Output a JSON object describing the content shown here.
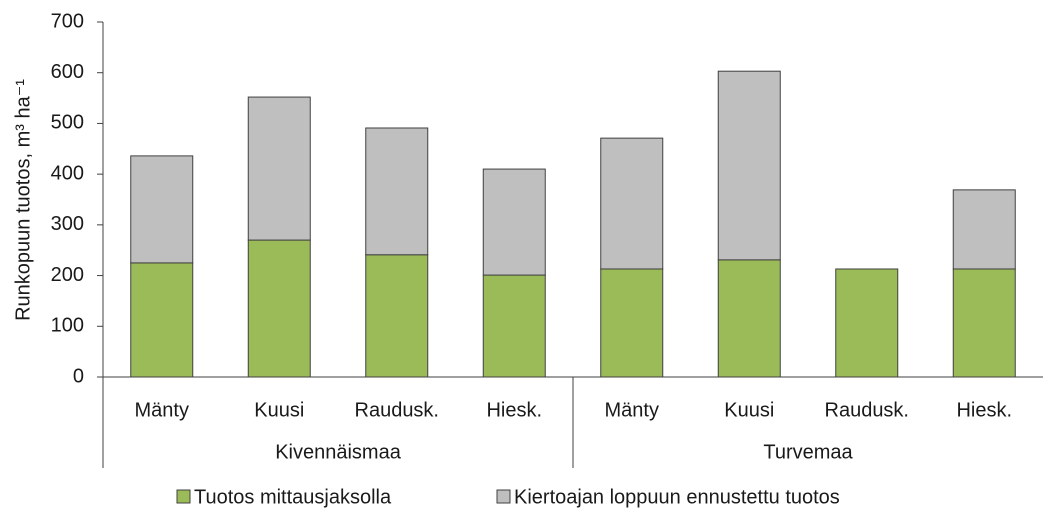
{
  "chart_data": {
    "type": "stacked-bar",
    "y_label": "Runkopuun tuotos, m³ ha⁻¹",
    "categories": [
      "Mänty",
      "Kuusi",
      "Raudusk.",
      "Hiesk.",
      "Mänty",
      "Kuusi",
      "Raudusk.",
      "Hiesk."
    ],
    "groups": [
      "Kivennäismaa",
      "Turvemaa"
    ],
    "series": [
      {
        "name": "Tuotos mittausjaksolla",
        "color": "#9bbb59",
        "values": [
          225,
          270,
          241,
          201,
          213,
          231,
          213,
          213
        ]
      },
      {
        "name": "Kiertoajan loppuun ennustettu tuotos",
        "color": "#bfbfbf",
        "values": [
          211,
          282,
          250,
          209,
          258,
          372,
          0,
          156
        ]
      }
    ],
    "ylim": [
      0,
      700
    ],
    "yticks": [
      0,
      100,
      200,
      300,
      400,
      500,
      600,
      700
    ],
    "grid": false
  }
}
